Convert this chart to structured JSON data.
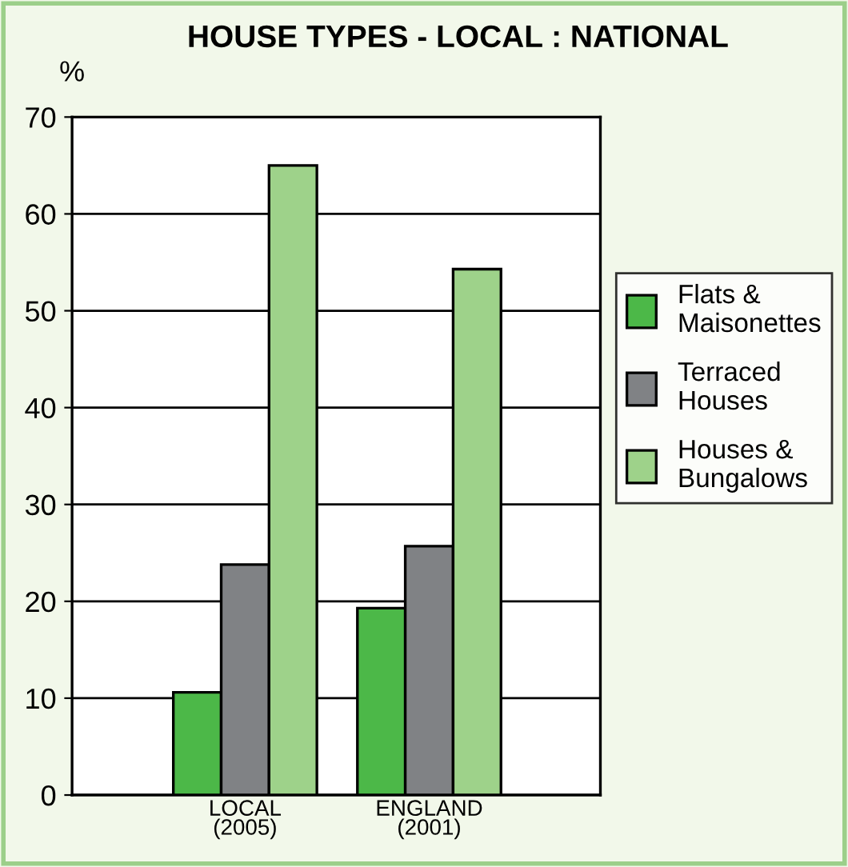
{
  "chart_data": {
    "type": "bar",
    "title": "HOUSE TYPES - LOCAL : NATIONAL",
    "ylabel": "%",
    "categories": [
      "LOCAL\n(2005)",
      "ENGLAND\n(2001)"
    ],
    "series": [
      {
        "name": "Flats &\nMaisonettes",
        "color": "#4cb848",
        "values": [
          10.6,
          19.3
        ]
      },
      {
        "name": "Terraced\nHouses",
        "color": "#808285",
        "values": [
          23.8,
          25.7
        ]
      },
      {
        "name": "Houses &\nBungalows",
        "color": "#9ed28a",
        "values": [
          65,
          54.3
        ]
      }
    ],
    "ylim": [
      0,
      70
    ],
    "yticks": [
      0,
      10,
      20,
      30,
      40,
      50,
      60,
      70
    ],
    "grid": "y",
    "legend": "right"
  }
}
